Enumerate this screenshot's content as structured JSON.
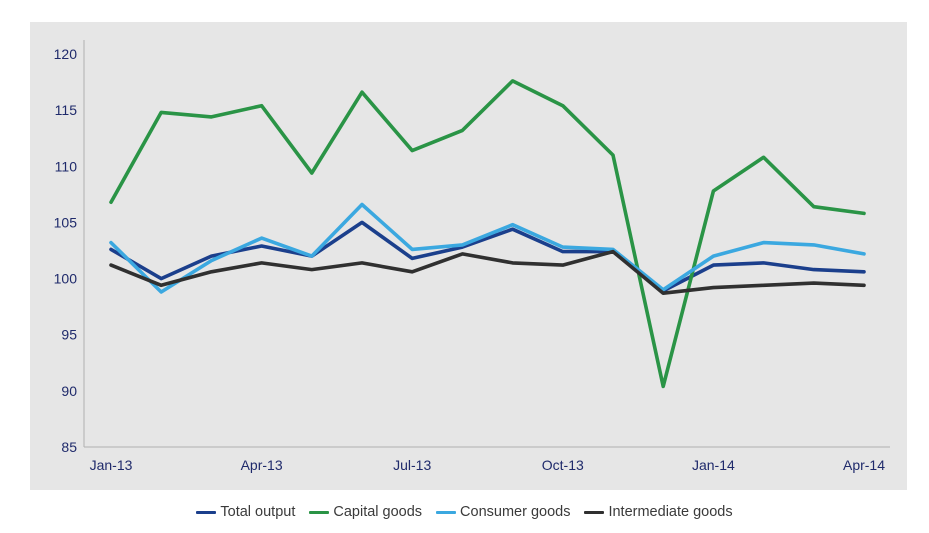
{
  "chart_data": {
    "type": "line",
    "title": "",
    "xlabel": "",
    "ylabel": "",
    "categories": [
      "Jan-13",
      "Feb-13",
      "Mar-13",
      "Apr-13",
      "May-13",
      "Jun-13",
      "Jul-13",
      "Aug-13",
      "Sep-13",
      "Oct-13",
      "Nov-13",
      "Dec-13",
      "Jan-14",
      "Feb-14",
      "Mar-14",
      "Apr-14"
    ],
    "tick_labels": [
      "Jan-13",
      "Apr-13",
      "Jul-13",
      "Oct-13",
      "Jan-14",
      "Apr-14"
    ],
    "tick_label_indices": [
      0,
      3,
      6,
      9,
      12,
      15
    ],
    "ylim": [
      85,
      120
    ],
    "yticks": [
      85,
      90,
      95,
      100,
      105,
      110,
      115,
      120
    ],
    "grid": false,
    "legend_position": "bottom",
    "series": [
      {
        "name": "Total output",
        "color": "#1b3f8c",
        "values": [
          102.6,
          100.0,
          102.0,
          102.9,
          102.0,
          105.0,
          101.8,
          102.8,
          104.4,
          102.4,
          102.4,
          98.9,
          101.2,
          101.4,
          100.8,
          100.6
        ]
      },
      {
        "name": "Capital goods",
        "color": "#2a9446",
        "values": [
          106.8,
          114.8,
          114.4,
          115.4,
          109.4,
          116.6,
          111.4,
          113.2,
          117.6,
          115.4,
          111.0,
          90.4,
          107.8,
          110.8,
          106.4,
          105.8
        ]
      },
      {
        "name": "Consumer goods",
        "color": "#3ba8e0",
        "values": [
          103.2,
          98.8,
          101.6,
          103.6,
          102.0,
          106.6,
          102.6,
          103.0,
          104.8,
          102.8,
          102.6,
          99.0,
          102.0,
          103.2,
          103.0,
          102.2
        ]
      },
      {
        "name": "Intermediate goods",
        "color": "#303030",
        "values": [
          101.2,
          99.4,
          100.6,
          101.4,
          100.8,
          101.4,
          100.6,
          102.2,
          101.4,
          101.2,
          102.4,
          98.7,
          99.2,
          99.4,
          99.6,
          99.4
        ]
      }
    ]
  }
}
